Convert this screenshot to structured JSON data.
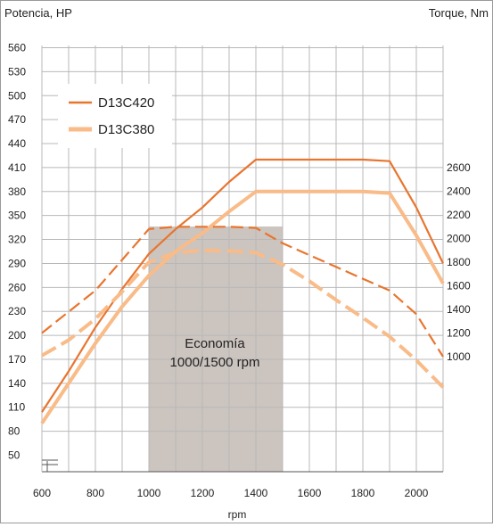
{
  "chart_data": {
    "type": "line",
    "left_axis_label": "Potencia, HP",
    "right_axis_label": "Torque, Nm",
    "xlabel": "rpm",
    "x_ticks": [
      600,
      800,
      1000,
      1200,
      1400,
      1600,
      1800,
      2000
    ],
    "x_range": [
      600,
      2100
    ],
    "left_ticks": [
      50,
      80,
      110,
      140,
      170,
      200,
      230,
      260,
      290,
      320,
      350,
      380,
      410,
      440,
      470,
      500,
      530,
      560
    ],
    "right_ticks": [
      1000,
      1200,
      1400,
      1600,
      1800,
      2000,
      2200,
      2400,
      2600
    ],
    "grid": true,
    "legend": {
      "placement": "top-left",
      "entries": [
        "D13C420",
        "D13C380"
      ]
    },
    "colors": {
      "D13C420": "#e8752f",
      "D13C380": "#f9bb88",
      "shade": "#ccc4bf",
      "grid": "#b8b8b8"
    },
    "shaded_region": {
      "label_line1": "Economía",
      "label_line2": "1000/1500 rpm",
      "x_from": 1000,
      "x_to": 1500
    },
    "series": [
      {
        "name": "D13C420",
        "kind": "power",
        "style": "solid",
        "x": [
          600,
          700,
          800,
          900,
          1000,
          1100,
          1200,
          1300,
          1400,
          1500,
          1600,
          1700,
          1800,
          1900,
          2000,
          2100
        ],
        "values": [
          104,
          155,
          210,
          258,
          302,
          333,
          360,
          392,
          420,
          420,
          420,
          420,
          420,
          418,
          360,
          290
        ]
      },
      {
        "name": "D13C380",
        "kind": "power",
        "style": "solid",
        "x": [
          600,
          700,
          800,
          900,
          1000,
          1100,
          1200,
          1300,
          1400,
          1500,
          1600,
          1700,
          1800,
          1900,
          2000,
          2100
        ],
        "values": [
          90,
          140,
          190,
          236,
          275,
          305,
          328,
          355,
          380,
          380,
          380,
          380,
          380,
          378,
          325,
          265
        ]
      },
      {
        "name": "D13C420",
        "kind": "torque",
        "style": "dashed",
        "x": [
          600,
          700,
          800,
          900,
          1000,
          1100,
          1200,
          1300,
          1400,
          1500,
          1600,
          1700,
          1800,
          1900,
          2000,
          2100
        ],
        "values": [
          1200,
          1380,
          1560,
          1820,
          2080,
          2100,
          2100,
          2100,
          2090,
          1960,
          1860,
          1760,
          1660,
          1560,
          1360,
          1000
        ]
      },
      {
        "name": "D13C380",
        "kind": "torque",
        "style": "dashed",
        "x": [
          600,
          700,
          800,
          900,
          1000,
          1100,
          1200,
          1300,
          1400,
          1500,
          1600,
          1700,
          1800,
          1900,
          2000,
          2100
        ],
        "values": [
          1010,
          1140,
          1320,
          1550,
          1800,
          1880,
          1900,
          1895,
          1880,
          1780,
          1640,
          1480,
          1330,
          1170,
          970,
          740
        ]
      }
    ]
  }
}
